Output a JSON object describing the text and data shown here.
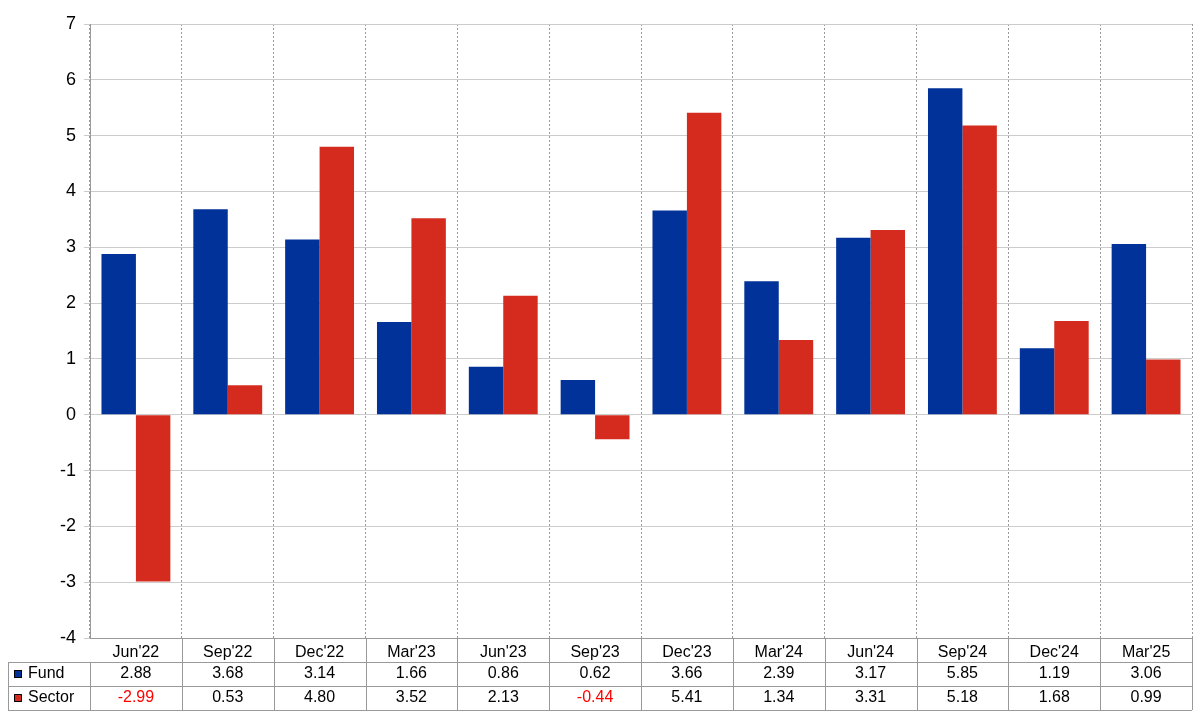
{
  "chart_data": {
    "type": "bar",
    "categories": [
      "Jun'22",
      "Sep'22",
      "Dec'22",
      "Mar'23",
      "Jun'23",
      "Sep'23",
      "Dec'23",
      "Mar'24",
      "Jun'24",
      "Sep'24",
      "Dec'24",
      "Mar'25"
    ],
    "series": [
      {
        "name": "Fund",
        "color": "#003299",
        "values": [
          2.88,
          3.68,
          3.14,
          1.66,
          0.86,
          0.62,
          3.66,
          2.39,
          3.17,
          5.85,
          1.19,
          3.06
        ],
        "value_labels": [
          "2.88",
          "3.68",
          "3.14",
          "1.66",
          "0.86",
          "0.62",
          "3.66",
          "2.39",
          "3.17",
          "5.85",
          "1.19",
          "3.06"
        ]
      },
      {
        "name": "Sector",
        "color": "#d52b1e",
        "values": [
          -2.99,
          0.53,
          4.8,
          3.52,
          2.13,
          -0.44,
          5.41,
          1.34,
          3.31,
          5.18,
          1.68,
          0.99
        ],
        "value_labels": [
          "-2.99",
          "0.53",
          "4.80",
          "3.52",
          "2.13",
          "-0.44",
          "5.41",
          "1.34",
          "3.31",
          "5.18",
          "1.68",
          "0.99"
        ]
      }
    ],
    "ylim": [
      -4,
      7
    ],
    "yticks": [
      -4,
      -3,
      -2,
      -1,
      0,
      1,
      2,
      3,
      4,
      5,
      6,
      7
    ],
    "grid": true,
    "legend": "bottom left"
  }
}
